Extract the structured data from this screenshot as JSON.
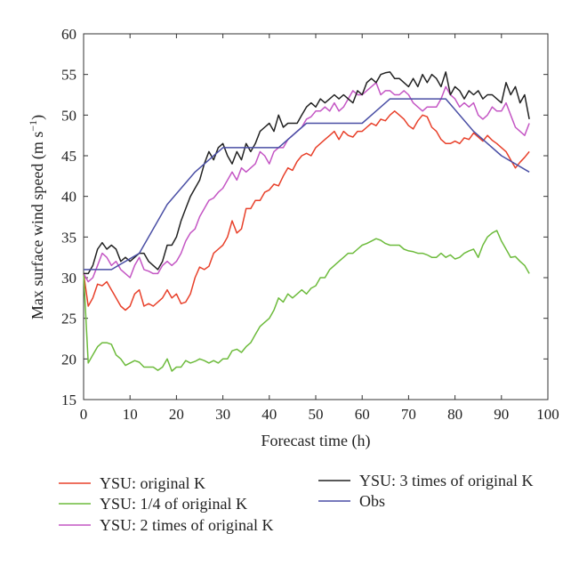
{
  "chart_data": {
    "type": "line",
    "xlabel": "Forecast time (h)",
    "ylabel": "Max surface wind speed (m s",
    "ylabel_sup": "−1",
    "ylabel_close": ")",
    "xlim": [
      0,
      100
    ],
    "ylim": [
      15,
      60
    ],
    "xticks": [
      "0",
      "10",
      "20",
      "30",
      "40",
      "50",
      "60",
      "70",
      "80",
      "90",
      "100"
    ],
    "yticks": [
      "15",
      "20",
      "25",
      "30",
      "35",
      "40",
      "45",
      "50",
      "55",
      "60"
    ],
    "grid": false,
    "legend_position": "bottom",
    "series": [
      {
        "name": "YSU: original K",
        "color": "#e8402a",
        "x": [
          0,
          1,
          2,
          3,
          4,
          5,
          6,
          7,
          8,
          9,
          10,
          11,
          12,
          13,
          14,
          15,
          16,
          17,
          18,
          19,
          20,
          21,
          22,
          23,
          24,
          25,
          26,
          27,
          28,
          29,
          30,
          31,
          32,
          33,
          34,
          35,
          36,
          37,
          38,
          39,
          40,
          41,
          42,
          43,
          44,
          45,
          46,
          47,
          48,
          49,
          50,
          51,
          52,
          53,
          54,
          55,
          56,
          57,
          58,
          59,
          60,
          61,
          62,
          63,
          64,
          65,
          66,
          67,
          68,
          69,
          70,
          71,
          72,
          73,
          74,
          75,
          76,
          77,
          78,
          79,
          80,
          81,
          82,
          83,
          84,
          85,
          86,
          87,
          88,
          89,
          90,
          91,
          92,
          93,
          94,
          95,
          96
        ],
        "y": [
          30.5,
          26.5,
          27.5,
          29.2,
          29,
          29.5,
          28.5,
          27.5,
          26.5,
          26,
          26.5,
          28,
          28.5,
          26.5,
          26.8,
          26.5,
          27,
          27.5,
          28.5,
          27.5,
          28,
          26.8,
          27,
          28,
          30,
          31.3,
          31,
          31.4,
          33,
          33.5,
          34,
          35,
          37,
          35.5,
          36,
          38.5,
          38.5,
          39.5,
          39.5,
          40.5,
          40.8,
          41.5,
          41.3,
          42.5,
          43.5,
          43.2,
          44.3,
          45,
          45.3,
          45,
          46,
          46.5,
          47,
          47.5,
          48,
          47,
          48,
          47.5,
          47.3,
          48,
          48,
          48.5,
          49,
          48.7,
          49.5,
          49.3,
          50,
          50.5,
          50,
          49.5,
          48.7,
          48.3,
          49.3,
          50,
          49.8,
          48.5,
          48,
          47,
          46.5,
          46.5,
          46.8,
          46.5,
          47.2,
          47,
          47.8,
          47.3,
          46.8,
          47.5,
          46.9,
          46.5,
          46,
          45.5,
          44.5,
          43.5,
          44.2,
          44.8,
          45.5
        ]
      },
      {
        "name": "YSU: 1/4 of original K",
        "color": "#6dbb3c",
        "x": [
          0,
          1,
          2,
          3,
          4,
          5,
          6,
          7,
          8,
          9,
          10,
          11,
          12,
          13,
          14,
          15,
          16,
          17,
          18,
          19,
          20,
          21,
          22,
          23,
          24,
          25,
          26,
          27,
          28,
          29,
          30,
          31,
          32,
          33,
          34,
          35,
          36,
          37,
          38,
          39,
          40,
          41,
          42,
          43,
          44,
          45,
          46,
          47,
          48,
          49,
          50,
          51,
          52,
          53,
          54,
          55,
          56,
          57,
          58,
          59,
          60,
          61,
          62,
          63,
          64,
          65,
          66,
          67,
          68,
          69,
          70,
          71,
          72,
          73,
          74,
          75,
          76,
          77,
          78,
          79,
          80,
          81,
          82,
          83,
          84,
          85,
          86,
          87,
          88,
          89,
          90,
          91,
          92,
          93,
          94,
          95,
          96
        ],
        "y": [
          30.5,
          19.5,
          20.5,
          21.5,
          22,
          22,
          21.8,
          20.5,
          20,
          19.2,
          19.5,
          19.8,
          19.6,
          19,
          19,
          19,
          18.6,
          19,
          20,
          18.5,
          19,
          19,
          19.8,
          19.5,
          19.7,
          20,
          19.8,
          19.5,
          19.8,
          19.5,
          20,
          20,
          21,
          21.2,
          20.8,
          21.5,
          22,
          23,
          24,
          24.5,
          25,
          26,
          27.5,
          27,
          28,
          27.5,
          28,
          28.5,
          28,
          28.7,
          29,
          30,
          30,
          31,
          31.5,
          32,
          32.5,
          33,
          33,
          33.5,
          34,
          34.2,
          34.5,
          34.8,
          34.6,
          34.2,
          34,
          34,
          34,
          33.5,
          33.3,
          33.2,
          33,
          33,
          32.8,
          32.5,
          32.5,
          33,
          32.5,
          32.8,
          32.3,
          32.5,
          33,
          33.3,
          33.5,
          32.5,
          34,
          35,
          35.5,
          35.8,
          34.5,
          33.5,
          32.5,
          32.6,
          32,
          31.5,
          30.5
        ]
      },
      {
        "name": "YSU: 2 times of original K",
        "color": "#c456c4",
        "x": [
          0,
          1,
          2,
          3,
          4,
          5,
          6,
          7,
          8,
          9,
          10,
          11,
          12,
          13,
          14,
          15,
          16,
          17,
          18,
          19,
          20,
          21,
          22,
          23,
          24,
          25,
          26,
          27,
          28,
          29,
          30,
          31,
          32,
          33,
          34,
          35,
          36,
          37,
          38,
          39,
          40,
          41,
          42,
          43,
          44,
          45,
          46,
          47,
          48,
          49,
          50,
          51,
          52,
          53,
          54,
          55,
          56,
          57,
          58,
          59,
          60,
          61,
          62,
          63,
          64,
          65,
          66,
          67,
          68,
          69,
          70,
          71,
          72,
          73,
          74,
          75,
          76,
          77,
          78,
          79,
          80,
          81,
          82,
          83,
          84,
          85,
          86,
          87,
          88,
          89,
          90,
          91,
          92,
          93,
          94,
          95,
          96
        ],
        "y": [
          30.5,
          29.5,
          30,
          31.5,
          33,
          32.5,
          31.5,
          32,
          31,
          30.5,
          30,
          31.5,
          32.5,
          31,
          30.8,
          30.5,
          30.5,
          31.5,
          32,
          31.5,
          32,
          33,
          34.5,
          35.5,
          36,
          37.5,
          38.5,
          39.5,
          39.8,
          40.5,
          41,
          42,
          43,
          42,
          43.5,
          43,
          43.5,
          44,
          45.5,
          45,
          44,
          45.5,
          46,
          46,
          47,
          47.5,
          48,
          48.5,
          49.5,
          49.8,
          50.5,
          50.5,
          51,
          50.5,
          51.5,
          50.5,
          51,
          52,
          53,
          52.5,
          52.5,
          53,
          53.5,
          54,
          52.5,
          53,
          53,
          52.5,
          52.5,
          53,
          52.5,
          51.5,
          51,
          50.5,
          51,
          51,
          51,
          52,
          53.5,
          52.5,
          52,
          51,
          51.5,
          51,
          51.5,
          50,
          49.5,
          50,
          51,
          50.5,
          50.5,
          51.5,
          50,
          48.5,
          48,
          47.5,
          49
        ]
      },
      {
        "name": "YSU: 3 times of original K",
        "color": "#222222",
        "x": [
          0,
          1,
          2,
          3,
          4,
          5,
          6,
          7,
          8,
          9,
          10,
          11,
          12,
          13,
          14,
          15,
          16,
          17,
          18,
          19,
          20,
          21,
          22,
          23,
          24,
          25,
          26,
          27,
          28,
          29,
          30,
          31,
          32,
          33,
          34,
          35,
          36,
          37,
          38,
          39,
          40,
          41,
          42,
          43,
          44,
          45,
          46,
          47,
          48,
          49,
          50,
          51,
          52,
          53,
          54,
          55,
          56,
          57,
          58,
          59,
          60,
          61,
          62,
          63,
          64,
          65,
          66,
          67,
          68,
          69,
          70,
          71,
          72,
          73,
          74,
          75,
          76,
          77,
          78,
          79,
          80,
          81,
          82,
          83,
          84,
          85,
          86,
          87,
          88,
          89,
          90,
          91,
          92,
          93,
          94,
          95,
          96
        ],
        "y": [
          30.5,
          30.5,
          31.5,
          33.5,
          34.3,
          33.5,
          34,
          33.5,
          32,
          32.5,
          32,
          32.5,
          33,
          33,
          32,
          31.5,
          31,
          32,
          34,
          34,
          35,
          37,
          38.5,
          40,
          41,
          42,
          44,
          45.5,
          44.5,
          46,
          46.5,
          45,
          44,
          45.5,
          44.5,
          46.5,
          45.5,
          46.5,
          48,
          48.5,
          49,
          48,
          50,
          48.5,
          49,
          49,
          49,
          50,
          51,
          51.5,
          51,
          52,
          51.5,
          52,
          52.5,
          52,
          52.5,
          52,
          51.5,
          53,
          52.5,
          54,
          54.5,
          54,
          55,
          55.2,
          55.3,
          54.5,
          54.5,
          54,
          53.5,
          54.5,
          53.5,
          55,
          54,
          55,
          54.5,
          53.5,
          55.3,
          52.5,
          53.5,
          53,
          52,
          53,
          52.5,
          53,
          52,
          52.5,
          52.5,
          52,
          51.5,
          54,
          52.5,
          53.5,
          51.5,
          52.5,
          49.5
        ]
      },
      {
        "name": "Obs",
        "color": "#4a4fa5",
        "x": [
          0,
          6,
          12,
          18,
          24,
          30,
          36,
          42,
          48,
          54,
          60,
          66,
          72,
          78,
          84,
          90,
          96
        ],
        "y": [
          31,
          31,
          33,
          39,
          43,
          46,
          46,
          46,
          49,
          49,
          49,
          52,
          52,
          52,
          48,
          45,
          43
        ]
      }
    ]
  }
}
